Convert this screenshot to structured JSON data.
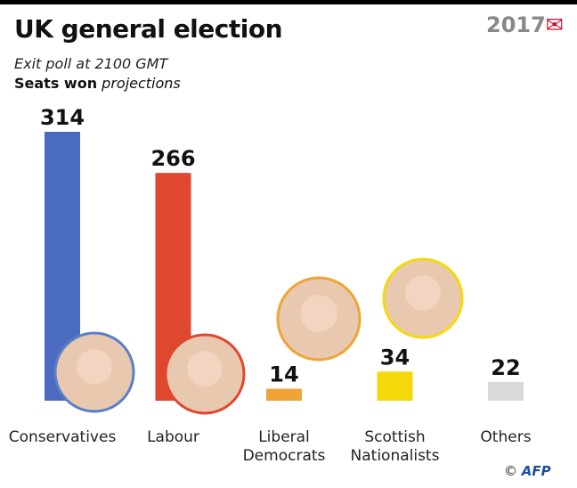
{
  "header": {
    "title": "UK general election",
    "subtitle": "Exit poll at 2100 GMT",
    "measure_bold": "Seats won",
    "measure_italic": "projections",
    "logo": "2017"
  },
  "credit": {
    "symbol": "©",
    "agency": "AFP"
  },
  "chart_data": {
    "type": "bar",
    "categories": [
      "Conservatives",
      "Labour",
      "Liberal Democrats",
      "Scottish Nationalists",
      "Others"
    ],
    "category_lines": [
      [
        "Conservatives"
      ],
      [
        "Labour"
      ],
      [
        "Liberal",
        "Democrats"
      ],
      [
        "Scottish",
        "Nationalists"
      ],
      [
        "Others"
      ]
    ],
    "values": [
      314,
      266,
      14,
      34,
      22
    ],
    "colors": [
      "#4a6bbf",
      "#e0472f",
      "#f0a436",
      "#f5d90a",
      "#d9d9d9"
    ],
    "ylim": [
      0,
      320
    ],
    "grid": false,
    "legend": "none"
  }
}
